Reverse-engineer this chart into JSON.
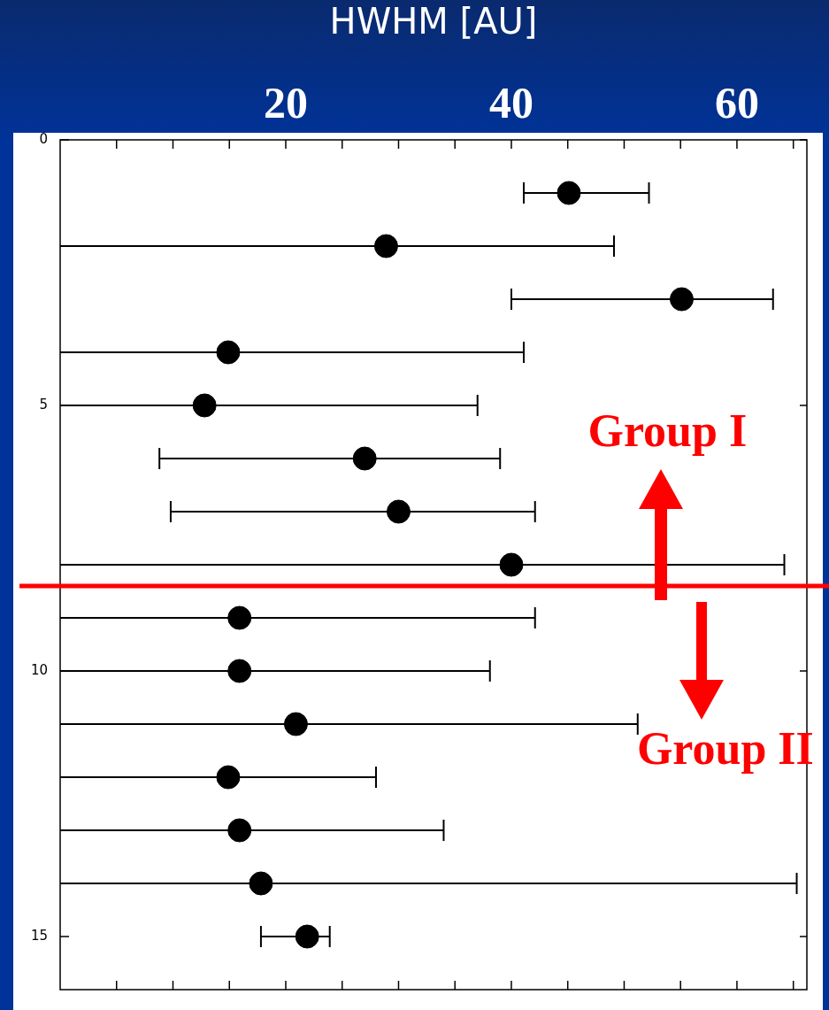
{
  "chart_data": {
    "type": "scatter",
    "xlabel": "HWHM [AU]",
    "x": [
      45.1,
      28.9,
      55.1,
      14.9,
      12.8,
      27.0,
      30.0,
      40.0,
      15.9,
      15.9,
      20.9,
      14.9,
      15.9,
      17.8,
      21.9
    ],
    "values": [
      1,
      2,
      3,
      4,
      5,
      6,
      7,
      8,
      9,
      10,
      11,
      12,
      13,
      14,
      15
    ],
    "xerrors": [
      [
        41.1,
        52.2
      ],
      [
        0,
        49.1
      ],
      [
        40.0,
        63.2
      ],
      [
        0,
        41.1
      ],
      [
        0,
        37.0
      ],
      [
        8.8,
        39.0
      ],
      [
        9.8,
        42.1
      ],
      [
        0,
        64.2
      ],
      [
        0,
        42.1
      ],
      [
        0,
        38.1
      ],
      [
        0,
        51.2
      ],
      [
        0,
        28.0
      ],
      [
        0,
        34.0
      ],
      [
        0,
        65.3
      ],
      [
        17.8,
        23.9
      ]
    ],
    "color": "#000000",
    "marker": "circle",
    "xlim": [
      0,
      66.2
    ],
    "xticks": [
      {
        "value": 5,
        "label": null
      },
      {
        "value": 10,
        "label": null
      },
      {
        "value": 15,
        "label": null
      },
      20,
      {
        "value": 25,
        "label": null
      },
      {
        "value": 30,
        "label": null
      },
      {
        "value": 35,
        "label": null
      },
      40,
      {
        "value": 45,
        "label": null
      },
      {
        "value": 50,
        "label": null
      },
      {
        "value": 55,
        "label": null
      },
      60,
      {
        "value": 65,
        "label": null
      }
    ],
    "ylim": [
      16,
      0
    ],
    "yticks": [
      0,
      5,
      10,
      15
    ],
    "ref_lines": [
      {
        "axis": "y",
        "value": 8.4,
        "color": "#ff0000"
      }
    ],
    "annotations": [
      "Group I",
      "Group II"
    ],
    "grid": false,
    "legend": false
  }
}
